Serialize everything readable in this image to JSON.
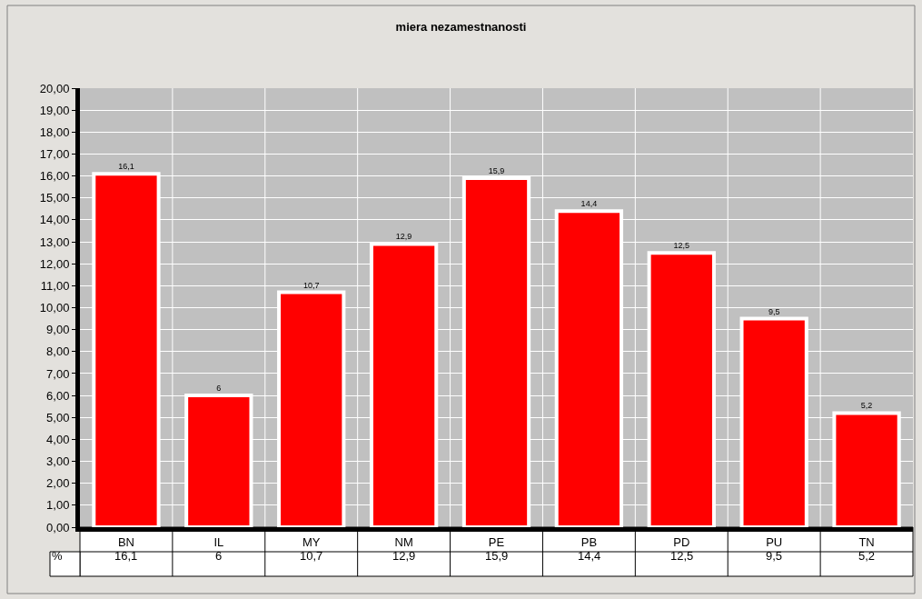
{
  "chart_data": {
    "type": "bar",
    "title": "miera nezamestnanosti",
    "categories": [
      "BN",
      "IL",
      "MY",
      "NM",
      "PE",
      "PB",
      "PD",
      "PU",
      "TN"
    ],
    "series": [
      {
        "name": "%",
        "color": "#ff0000",
        "values": [
          16.1,
          6,
          10.7,
          12.9,
          15.9,
          14.4,
          12.5,
          9.5,
          5.2
        ],
        "value_labels": [
          "16,1",
          "6",
          "10,7",
          "12,9",
          "15,9",
          "14,4",
          "12,5",
          "9,5",
          "5,2"
        ]
      }
    ],
    "ylim": [
      0,
      20
    ],
    "yticks": [
      {
        "value": 0,
        "label": "0,00"
      },
      {
        "value": 1,
        "label": "1,00"
      },
      {
        "value": 2,
        "label": "2,00"
      },
      {
        "value": 3,
        "label": "3,00"
      },
      {
        "value": 4,
        "label": "4,00"
      },
      {
        "value": 5,
        "label": "5,00"
      },
      {
        "value": 6,
        "label": "6,00"
      },
      {
        "value": 7,
        "label": "7,00"
      },
      {
        "value": 8,
        "label": "8,00"
      },
      {
        "value": 9,
        "label": "9,00"
      },
      {
        "value": 10,
        "label": "10,00"
      },
      {
        "value": 11,
        "label": "11,00"
      },
      {
        "value": 12,
        "label": "12,00"
      },
      {
        "value": 13,
        "label": "13,00"
      },
      {
        "value": 14,
        "label": "14,00"
      },
      {
        "value": 15,
        "label": "15,00"
      },
      {
        "value": 16,
        "label": "16,00"
      },
      {
        "value": 17,
        "label": "17,00"
      },
      {
        "value": 18,
        "label": "18,00"
      },
      {
        "value": 19,
        "label": "19,00"
      },
      {
        "value": 20,
        "label": "20,00"
      }
    ],
    "grid": true,
    "legend": false
  }
}
